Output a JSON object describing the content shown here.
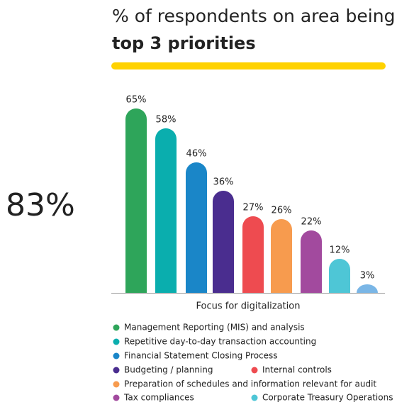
{
  "chart_data": {
    "type": "bar",
    "title": "% of respondents on area being",
    "subtitle": "top 3 priorities",
    "annotation": "83%",
    "x_label": "Focus for digitalization",
    "categories": [
      "Management Reporting (MIS) and analysis",
      "Repetitive day-to-day transaction accounting",
      "Financial Statement Closing Process",
      "Budgeting / planning",
      "Internal controls",
      "Preparation of schedules and information relevant for audit",
      "Tax compliances",
      "Corporate Treasury Operations",
      null
    ],
    "values": [
      65,
      58,
      46,
      36,
      27,
      26,
      22,
      12,
      3
    ],
    "value_labels": [
      "65%",
      "58%",
      "46%",
      "36%",
      "27%",
      "26%",
      "22%",
      "12%",
      "3%"
    ],
    "colors": [
      "#2ea55a",
      "#0aaeae",
      "#1a86c8",
      "#4a2d8f",
      "#ee4b50",
      "#f79b4e",
      "#a24a9e",
      "#4ec6d6",
      "#7ab6e6"
    ]
  }
}
